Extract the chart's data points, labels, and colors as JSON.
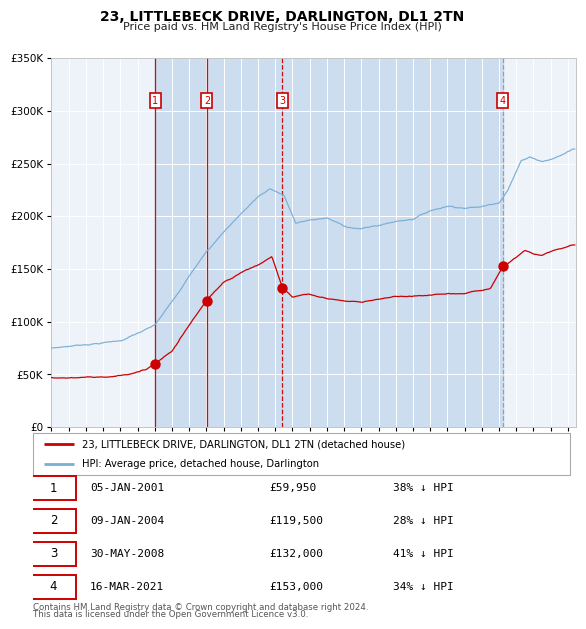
{
  "title": "23, LITTLEBECK DRIVE, DARLINGTON, DL1 2TN",
  "subtitle": "Price paid vs. HM Land Registry's House Price Index (HPI)",
  "legend_property": "23, LITTLEBECK DRIVE, DARLINGTON, DL1 2TN (detached house)",
  "legend_hpi": "HPI: Average price, detached house, Darlington",
  "footer1": "Contains HM Land Registry data © Crown copyright and database right 2024.",
  "footer2": "This data is licensed under the Open Government Licence v3.0.",
  "sales": [
    {
      "num": 1,
      "date": "05-JAN-2001",
      "price": 59950,
      "pct": "38% ↓ HPI",
      "year": 2001.03
    },
    {
      "num": 2,
      "date": "09-JAN-2004",
      "price": 119500,
      "pct": "28% ↓ HPI",
      "year": 2004.03
    },
    {
      "num": 3,
      "date": "30-MAY-2008",
      "price": 132000,
      "pct": "41% ↓ HPI",
      "year": 2008.42
    },
    {
      "num": 4,
      "date": "16-MAR-2021",
      "price": 153000,
      "pct": "34% ↓ HPI",
      "year": 2021.21
    }
  ],
  "vline_styles": [
    {
      "color": "#cc0000",
      "ls": "solid"
    },
    {
      "color": "#cc0000",
      "ls": "solid"
    },
    {
      "color": "#cc0000",
      "ls": "dashed"
    },
    {
      "color": "#999999",
      "ls": "dashed"
    }
  ],
  "ylim": [
    0,
    350000
  ],
  "yticks": [
    0,
    50000,
    100000,
    150000,
    200000,
    250000,
    300000,
    350000
  ],
  "xlim_start": 1995.0,
  "xlim_end": 2025.5,
  "plot_bg": "#eef3fa",
  "red_line_color": "#cc0000",
  "blue_line_color": "#7aafd4",
  "span_color": "#ccddef",
  "grid_color": "#ffffff",
  "title_fontsize": 10,
  "subtitle_fontsize": 8
}
